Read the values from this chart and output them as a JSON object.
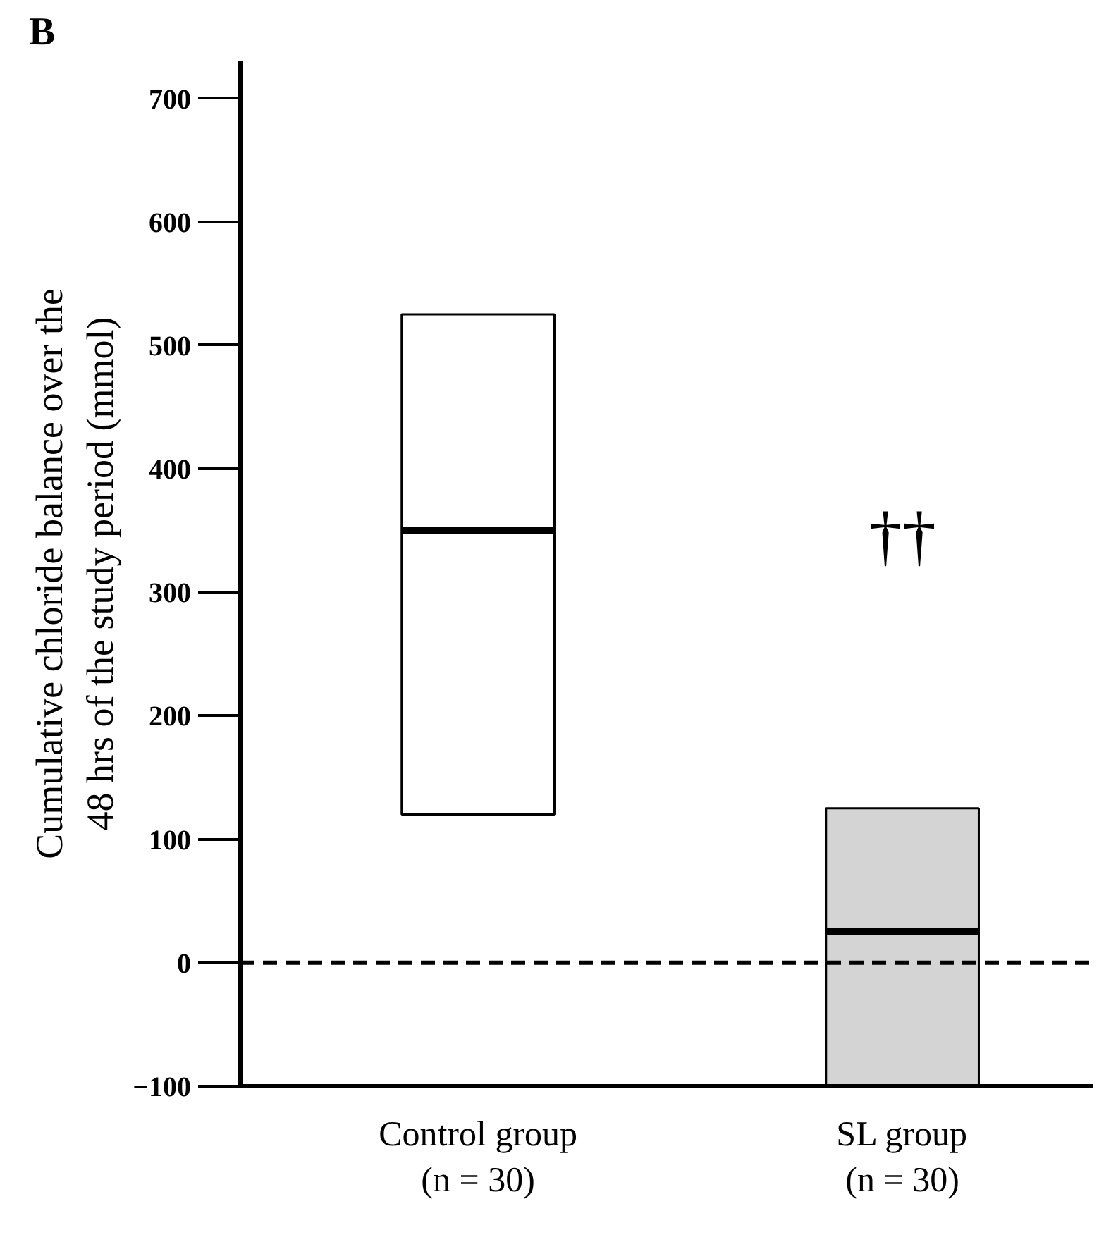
{
  "chart_data": {
    "type": "box",
    "title": "B",
    "ylabel": "Cumulative chloride balance over the\n48 hrs of the study period (mmol)",
    "categories": [
      "Control group\n(n = 30)",
      "SL group\n(n = 30)"
    ],
    "boxes": [
      {
        "low": 120,
        "q1": 120,
        "median": 350,
        "q3": 525,
        "high": 525
      },
      {
        "low": -100,
        "q1": -100,
        "median": 25,
        "q3": 125,
        "high": 125
      }
    ],
    "colors": [
      "#ffffff",
      "#d4d4d4"
    ],
    "ylim": [
      -100,
      730
    ],
    "yticks": [
      -100,
      0,
      100,
      200,
      300,
      400,
      500,
      600,
      700
    ],
    "ref_lines": [
      {
        "axis": "y",
        "value": 0,
        "line_style": "dashed",
        "color": "#000000"
      }
    ],
    "annotations": [
      "††"
    ],
    "grid": false
  }
}
